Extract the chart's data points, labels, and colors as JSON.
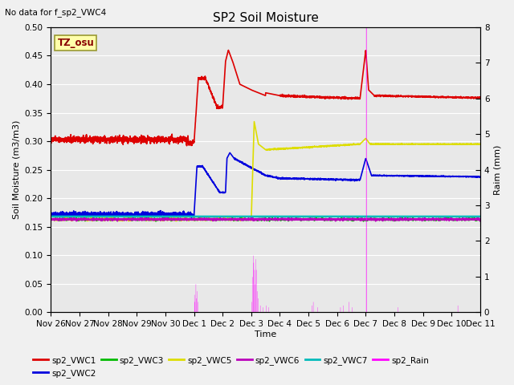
{
  "title": "SP2 Soil Moisture",
  "top_note": "No data for f_sp2_VWC4",
  "ylabel_left": "Soil Moisture (m3/m3)",
  "ylabel_right": "Raim (mm)",
  "xlabel": "Time",
  "timezone_label": "TZ_osu",
  "ylim_left": [
    0.0,
    0.5
  ],
  "ylim_right": [
    0.0,
    8.0
  ],
  "yticks_left": [
    0.0,
    0.05,
    0.1,
    0.15,
    0.2,
    0.25,
    0.3,
    0.35,
    0.4,
    0.45,
    0.5
  ],
  "yticks_right": [
    0.0,
    1.0,
    2.0,
    3.0,
    4.0,
    5.0,
    6.0,
    7.0,
    8.0
  ],
  "background_color": "#e8e8e8",
  "fig_facecolor": "#f0f0f0",
  "grid_color": "#ffffff",
  "series": {
    "sp2_VWC1": {
      "color": "#dd0000",
      "linewidth": 1.2
    },
    "sp2_VWC2": {
      "color": "#0000dd",
      "linewidth": 1.2
    },
    "sp2_VWC3": {
      "color": "#00bb00",
      "linewidth": 1.2
    },
    "sp2_VWC5": {
      "color": "#dddd00",
      "linewidth": 1.2
    },
    "sp2_VWC6": {
      "color": "#bb00bb",
      "linewidth": 1.2
    },
    "sp2_VWC7": {
      "color": "#00bbbb",
      "linewidth": 1.8
    },
    "sp2_Rain": {
      "color": "#ff00ff",
      "linewidth": 0.8
    }
  },
  "xticklabels": [
    "Nov 26",
    "Nov 27",
    "Nov 28",
    "Nov 29",
    "Nov 30",
    "Dec 1",
    "Dec 2",
    "Dec 3",
    "Dec 4",
    "Dec 5",
    "Dec 6",
    "Dec 7",
    "Dec 8",
    "Dec 9",
    "Dec 10",
    "Dec 11"
  ],
  "num_days": 16,
  "legend_order": [
    "sp2_VWC1",
    "sp2_VWC2",
    "sp2_VWC3",
    "sp2_VWC5",
    "sp2_VWC6",
    "sp2_VWC7",
    "sp2_Rain"
  ]
}
